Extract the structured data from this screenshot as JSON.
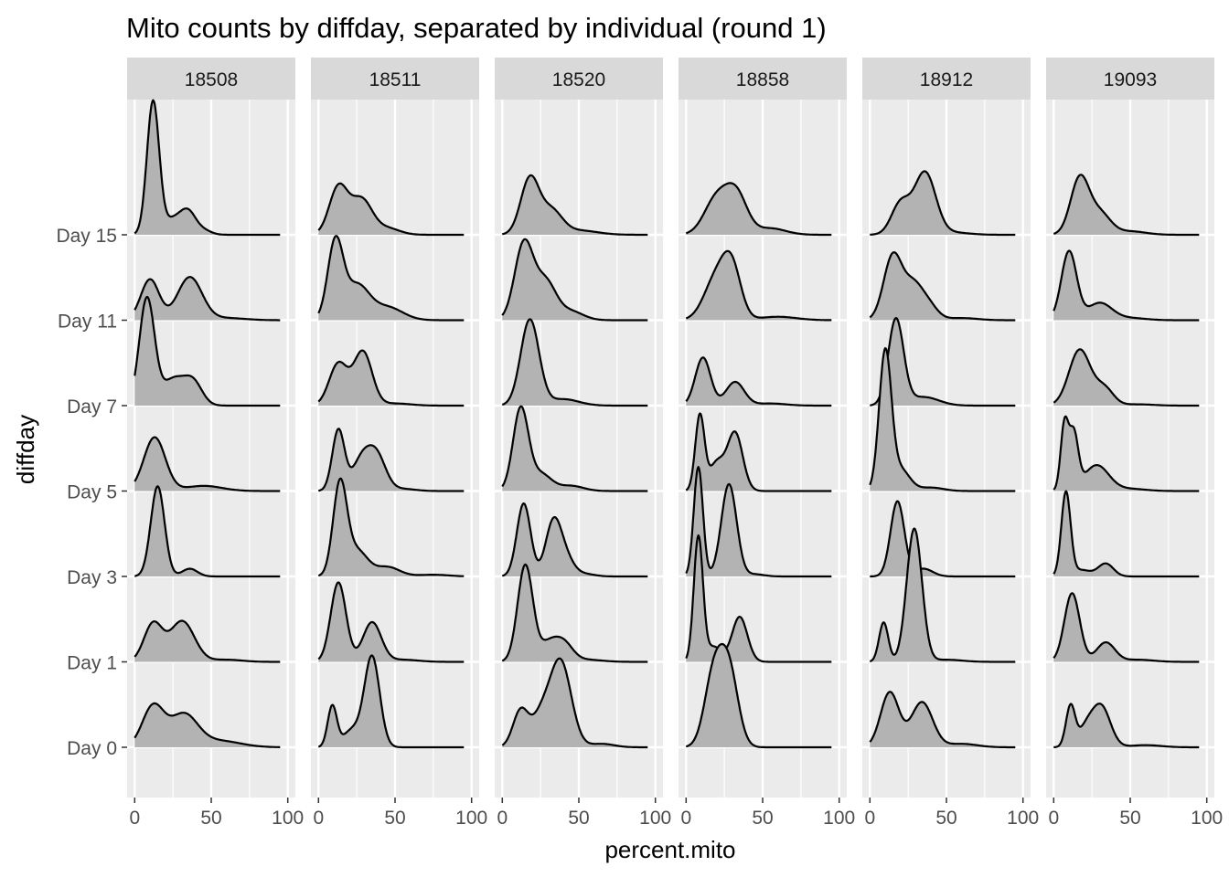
{
  "chart_data": {
    "type": "ridgeline-density",
    "title": "Mito counts by diffday, separated by individual (round 1)",
    "xlabel": "percent.mito",
    "ylabel": "diffday",
    "xlim": [
      0,
      100
    ],
    "x_ticks": [
      0,
      50,
      100
    ],
    "grid": true,
    "colors": {
      "fill": "#b3b3b3",
      "line": "#000000",
      "panel": "#ebebeb",
      "strip": "#d9d9d9",
      "grid": "#ffffff"
    },
    "facets": [
      "18508",
      "18511",
      "18520",
      "18858",
      "18912",
      "19093"
    ],
    "days": [
      "Day 0",
      "Day 1",
      "Day 3",
      "Day 5",
      "Day 7",
      "Day 11",
      "Day 15"
    ],
    "density_peaks": {
      "18508": [
        [
          [
            12,
            0.95,
            7
          ],
          [
            32,
            0.75,
            9
          ],
          [
            55,
            0.15,
            14
          ]
        ],
        [
          [
            12,
            0.88,
            6
          ],
          [
            31,
            0.95,
            8
          ],
          [
            60,
            0.05,
            10
          ]
        ],
        [
          [
            15,
            2.1,
            4.5
          ],
          [
            36,
            0.18,
            5
          ]
        ],
        [
          [
            13,
            1.25,
            7
          ],
          [
            45,
            0.12,
            12
          ]
        ],
        [
          [
            8,
            2.5,
            5
          ],
          [
            25,
            0.6,
            7
          ],
          [
            38,
            0.55,
            6
          ]
        ],
        [
          [
            10,
            0.95,
            6
          ],
          [
            36,
            1.0,
            8
          ],
          [
            60,
            0.05,
            12
          ]
        ],
        [
          [
            12,
            3.1,
            4
          ],
          [
            25,
            0.35,
            6
          ],
          [
            35,
            0.5,
            5
          ],
          [
            45,
            0.1,
            5
          ]
        ]
      ],
      "18511": [
        [
          [
            9,
            0.95,
            3
          ],
          [
            22,
            0.4,
            6
          ],
          [
            35,
            2.1,
            5
          ]
        ],
        [
          [
            13,
            1.85,
            5
          ],
          [
            35,
            0.92,
            6
          ],
          [
            55,
            0.05,
            10
          ]
        ],
        [
          [
            14,
            2.1,
            4.5
          ],
          [
            25,
            0.6,
            7
          ],
          [
            45,
            0.22,
            8
          ],
          [
            75,
            0.04,
            10
          ]
        ],
        [
          [
            13,
            1.42,
            4
          ],
          [
            28,
            0.7,
            6
          ],
          [
            38,
            0.8,
            6
          ],
          [
            55,
            0.05,
            8
          ]
        ],
        [
          [
            13,
            0.98,
            6
          ],
          [
            29,
            1.25,
            6
          ],
          [
            50,
            0.05,
            10
          ]
        ],
        [
          [
            11,
            1.78,
            5
          ],
          [
            25,
            0.8,
            8
          ],
          [
            45,
            0.3,
            10
          ]
        ],
        [
          [
            13,
            1.1,
            6
          ],
          [
            28,
            0.82,
            7
          ],
          [
            45,
            0.15,
            8
          ]
        ]
      ],
      "18520": [
        [
          [
            12,
            0.85,
            5
          ],
          [
            25,
            0.65,
            6
          ],
          [
            38,
            2.0,
            7
          ],
          [
            65,
            0.08,
            8
          ]
        ],
        [
          [
            15,
            2.25,
            5
          ],
          [
            30,
            0.4,
            6
          ],
          [
            40,
            0.42,
            6
          ],
          [
            55,
            0.05,
            10
          ]
        ],
        [
          [
            14,
            1.7,
            4.5
          ],
          [
            33,
            1.1,
            5
          ],
          [
            40,
            0.5,
            6
          ],
          [
            55,
            0.05,
            6
          ]
        ],
        [
          [
            12,
            1.9,
            5
          ],
          [
            25,
            0.4,
            7
          ],
          [
            45,
            0.12,
            8
          ]
        ],
        [
          [
            18,
            2.0,
            6
          ],
          [
            40,
            0.15,
            10
          ]
        ],
        [
          [
            14,
            1.75,
            6
          ],
          [
            28,
            0.9,
            7
          ],
          [
            45,
            0.2,
            8
          ]
        ],
        [
          [
            18,
            1.3,
            6
          ],
          [
            32,
            0.55,
            7
          ],
          [
            50,
            0.1,
            12
          ]
        ]
      ],
      "18858": [
        [
          [
            18,
            1.65,
            6
          ],
          [
            28,
            1.75,
            6
          ]
        ],
        [
          [
            8,
            2.9,
            3
          ],
          [
            18,
            0.35,
            5
          ],
          [
            35,
            1.05,
            5
          ]
        ],
        [
          [
            8,
            2.55,
            3
          ],
          [
            28,
            2.15,
            5
          ],
          [
            45,
            0.05,
            6
          ]
        ],
        [
          [
            9,
            1.75,
            3
          ],
          [
            20,
            0.65,
            5
          ],
          [
            32,
            1.35,
            5
          ]
        ],
        [
          [
            11,
            1.12,
            5
          ],
          [
            32,
            0.55,
            6
          ],
          [
            55,
            0.05,
            10
          ]
        ],
        [
          [
            20,
            1.0,
            8
          ],
          [
            30,
            1.05,
            6
          ],
          [
            60,
            0.08,
            12
          ]
        ],
        [
          [
            20,
            0.85,
            8
          ],
          [
            33,
            0.88,
            7
          ],
          [
            55,
            0.15,
            10
          ]
        ]
      ],
      "18912": [
        [
          [
            13,
            1.28,
            6
          ],
          [
            34,
            1.05,
            7
          ],
          [
            60,
            0.08,
            10
          ]
        ],
        [
          [
            9,
            0.92,
            3
          ],
          [
            29,
            3.1,
            5
          ],
          [
            50,
            0.05,
            10
          ]
        ],
        [
          [
            18,
            1.75,
            4.5
          ],
          [
            35,
            0.18,
            6
          ]
        ],
        [
          [
            10,
            3.2,
            4
          ],
          [
            20,
            0.5,
            6
          ],
          [
            40,
            0.08,
            8
          ]
        ],
        [
          [
            17,
            2.0,
            5
          ],
          [
            35,
            0.2,
            10
          ]
        ],
        [
          [
            15,
            1.5,
            6
          ],
          [
            28,
            0.75,
            6
          ],
          [
            38,
            0.35,
            6
          ],
          [
            60,
            0.05,
            10
          ]
        ],
        [
          [
            20,
            0.72,
            6
          ],
          [
            36,
            1.45,
            7
          ],
          [
            55,
            0.05,
            10
          ]
        ]
      ],
      "19093": [
        [
          [
            11,
            0.95,
            3
          ],
          [
            21,
            0.4,
            5
          ],
          [
            31,
            0.95,
            6
          ],
          [
            60,
            0.05,
            10
          ]
        ],
        [
          [
            12,
            1.6,
            5
          ],
          [
            34,
            0.45,
            6
          ],
          [
            55,
            0.05,
            10
          ]
        ],
        [
          [
            8,
            1.95,
            3
          ],
          [
            18,
            0.15,
            6
          ],
          [
            34,
            0.3,
            5
          ]
        ],
        [
          [
            7,
            1.5,
            2.5
          ],
          [
            13,
            1.3,
            3
          ],
          [
            28,
            0.6,
            8
          ],
          [
            50,
            0.05,
            10
          ]
        ],
        [
          [
            17,
            1.3,
            7
          ],
          [
            33,
            0.4,
            6
          ],
          [
            55,
            0.03,
            10
          ]
        ],
        [
          [
            10,
            1.6,
            5
          ],
          [
            30,
            0.4,
            8
          ],
          [
            50,
            0.05,
            10
          ]
        ],
        [
          [
            17,
            1.3,
            6
          ],
          [
            30,
            0.5,
            7
          ],
          [
            50,
            0.08,
            10
          ]
        ]
      ]
    }
  }
}
